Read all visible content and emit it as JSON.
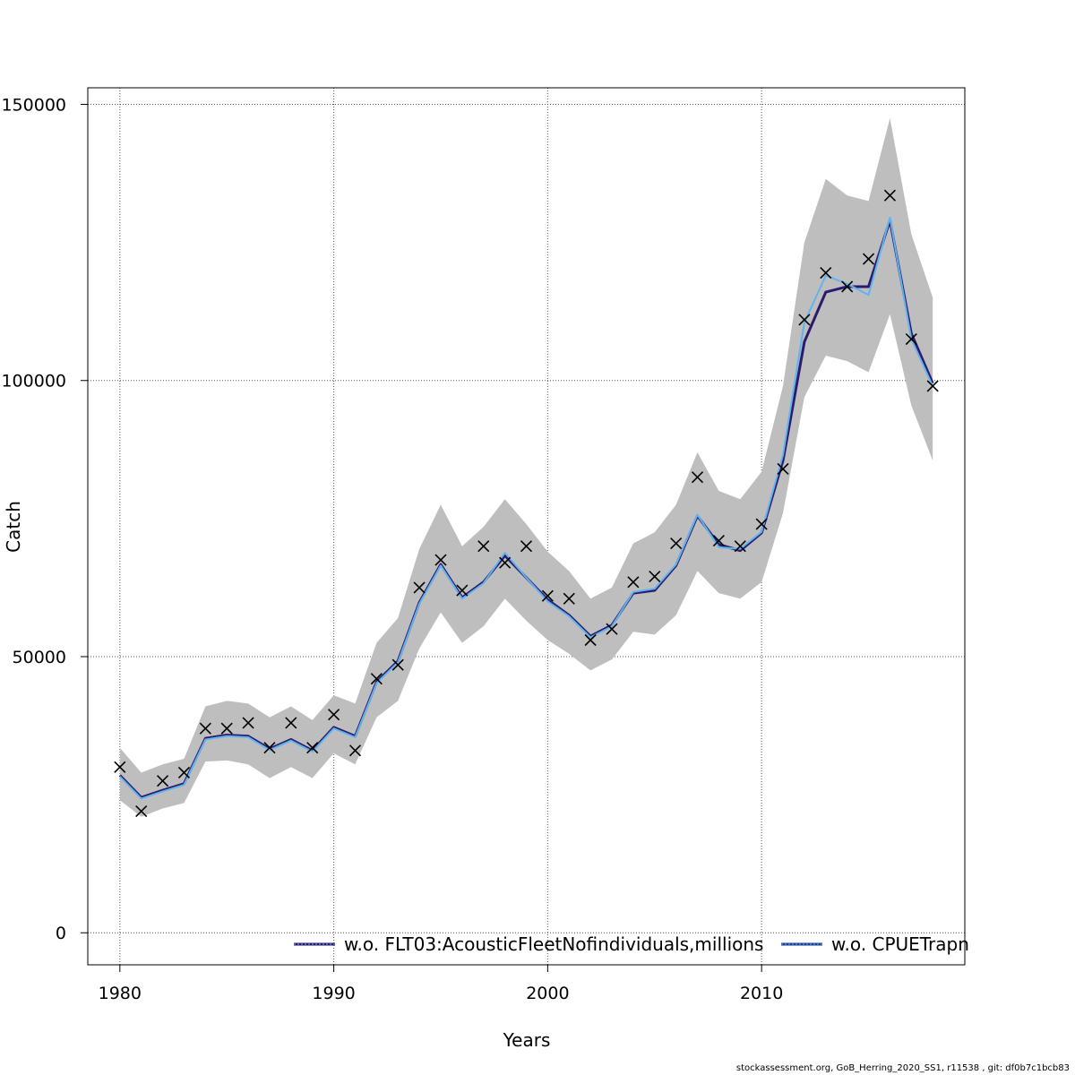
{
  "chart_data": {
    "type": "line",
    "xlabel": "Years",
    "ylabel": "Catch",
    "xlim": [
      1978.5,
      2019.5
    ],
    "ylim": [
      -5800,
      153000
    ],
    "x_ticks": [
      1980,
      1990,
      2000,
      2010
    ],
    "y_ticks": [
      0,
      50000,
      100000,
      150000
    ],
    "y_tick_labels": [
      "0",
      "50000",
      "100000",
      "150000"
    ],
    "grid": true,
    "legend_position": "bottom-right",
    "x": [
      1980,
      1981,
      1982,
      1983,
      1984,
      1985,
      1986,
      1987,
      1988,
      1989,
      1990,
      1991,
      1992,
      1993,
      1994,
      1995,
      1996,
      1997,
      1998,
      1999,
      2000,
      2001,
      2002,
      2003,
      2004,
      2005,
      2006,
      2007,
      2008,
      2009,
      2010,
      2011,
      2012,
      2013,
      2014,
      2015,
      2016,
      2017,
      2018
    ],
    "band": {
      "color": "#bebebe",
      "lower": [
        24000,
        21000,
        22500,
        23500,
        31000,
        31200,
        30500,
        28000,
        30000,
        28000,
        32500,
        30500,
        39000,
        42000,
        51500,
        58000,
        52500,
        55500,
        60500,
        56500,
        53000,
        50500,
        47500,
        49500,
        54500,
        54000,
        57500,
        65500,
        61500,
        60500,
        63500,
        76000,
        97000,
        104500,
        103500,
        101500,
        112000,
        95500,
        85500
      ],
      "upper": [
        33500,
        29000,
        30500,
        31500,
        41000,
        42000,
        41500,
        39000,
        41000,
        38500,
        43000,
        41500,
        52500,
        57000,
        69500,
        77500,
        70000,
        73500,
        78500,
        74000,
        69000,
        65500,
        60500,
        62500,
        70500,
        72500,
        77500,
        87000,
        80000,
        78500,
        83500,
        99000,
        125000,
        136500,
        133500,
        132500,
        147500,
        126500,
        115000
      ]
    },
    "series": [
      {
        "name": "w.o. FLT03:AcousticFleetNofindividuals,millions",
        "color": "#2c1a6e",
        "values": [
          28500,
          24500,
          25800,
          27000,
          35200,
          35800,
          35600,
          33300,
          35000,
          33000,
          37200,
          35600,
          45400,
          49200,
          59800,
          66700,
          60700,
          63500,
          68300,
          64300,
          60300,
          57500,
          53700,
          55700,
          61500,
          62000,
          66500,
          75500,
          70300,
          69200,
          72400,
          85500,
          107000,
          116000,
          117000,
          117000,
          129000,
          108500,
          99500
        ]
      },
      {
        "name": "w.o. CPUETrapn",
        "color": "#5fb4f0",
        "values": [
          28300,
          24300,
          25600,
          26800,
          35000,
          35600,
          35400,
          33100,
          34800,
          32800,
          37000,
          35400,
          45200,
          49000,
          59600,
          66500,
          60500,
          63300,
          68800,
          64300,
          60000,
          57300,
          53500,
          55500,
          61700,
          62300,
          66700,
          75700,
          69800,
          69500,
          72600,
          86500,
          110500,
          119000,
          117500,
          115500,
          129500,
          107500,
          99000
        ]
      }
    ],
    "observed": {
      "marker": "x",
      "values": [
        30000,
        22000,
        27500,
        29000,
        37000,
        37000,
        38000,
        33500,
        38000,
        33500,
        39500,
        33000,
        46000,
        48500,
        62500,
        67500,
        62000,
        70000,
        67000,
        70000,
        61000,
        60500,
        53000,
        55000,
        63500,
        64500,
        70500,
        82500,
        71000,
        70000,
        74000,
        84000,
        111000,
        119500,
        117000,
        122000,
        133500,
        107500,
        99000
      ]
    }
  },
  "footer_text": "stockassessment.org, GoB_Herring_2020_SS1, r11538 , git: df0b7c1bcb83"
}
